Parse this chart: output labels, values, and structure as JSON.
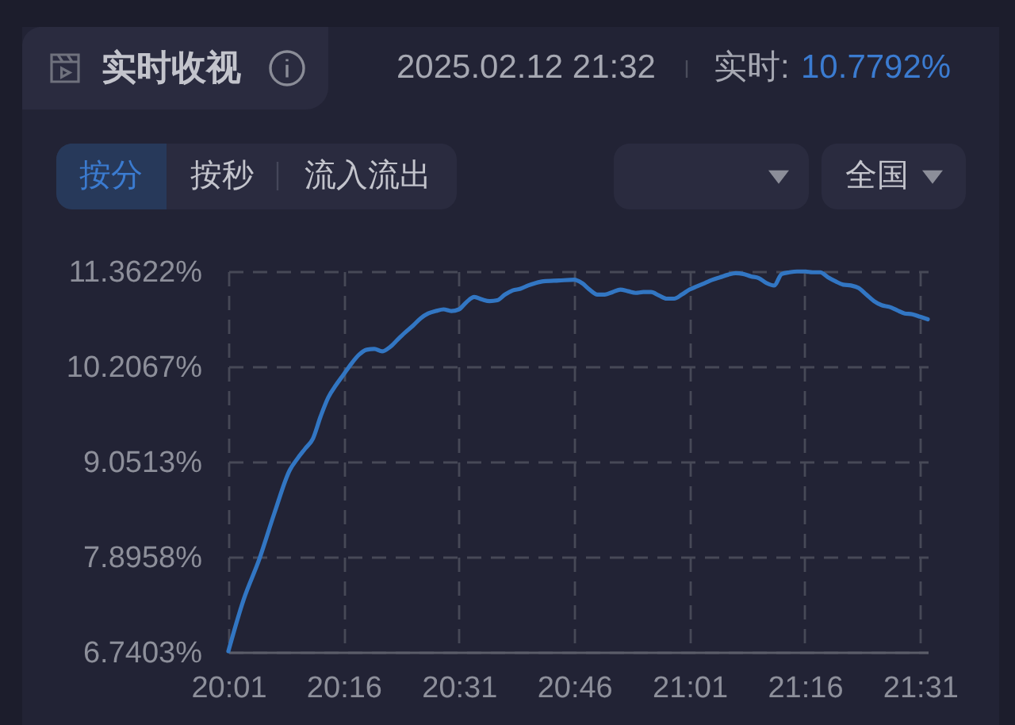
{
  "chart_data": {
    "type": "line",
    "title": "实时收视",
    "subtitle": "2025.02.12 21:32",
    "annotations": [
      "实时:",
      "10.7792%",
      "按分",
      "按秒",
      "流入流出",
      "全国"
    ],
    "x": [
      20.0167,
      20.05,
      20.0833,
      20.1167,
      20.15,
      20.1667,
      20.1833,
      20.2,
      20.2167,
      20.2333,
      20.25,
      20.2667,
      20.2833,
      20.3,
      20.3167,
      20.3333,
      20.35,
      20.3667,
      20.3833,
      20.4,
      20.4167,
      20.4333,
      20.45,
      20.4667,
      20.4833,
      20.5,
      20.5167,
      20.5333,
      20.55,
      20.5667,
      20.5833,
      20.6,
      20.6167,
      20.6333,
      20.65,
      20.6667,
      20.6833,
      20.7,
      20.7333,
      20.7667,
      20.7833,
      20.8,
      20.8167,
      20.8333,
      20.85,
      20.8667,
      20.8833,
      20.9,
      20.9167,
      20.9333,
      20.95,
      20.9667,
      20.9833,
      21.0,
      21.0167,
      21.0333,
      21.05,
      21.0667,
      21.0833,
      21.1,
      21.1167,
      21.1333,
      21.15,
      21.1667,
      21.1833,
      21.2,
      21.2167,
      21.2333,
      21.25,
      21.2667,
      21.2833,
      21.3,
      21.3167,
      21.3333,
      21.35,
      21.3667,
      21.3833,
      21.4,
      21.4167,
      21.4333,
      21.45,
      21.4667,
      21.4833,
      21.5,
      21.5167,
      21.5333
    ],
    "values": [
      6.75,
      7.38,
      7.86,
      8.43,
      8.95,
      9.09,
      9.21,
      9.33,
      9.6,
      9.83,
      9.98,
      10.11,
      10.24,
      10.35,
      10.41,
      10.42,
      10.39,
      10.44,
      10.53,
      10.62,
      10.7,
      10.79,
      10.85,
      10.88,
      10.9,
      10.88,
      10.9,
      10.99,
      11.05,
      11.02,
      11.0,
      11.01,
      11.08,
      11.13,
      11.15,
      11.19,
      11.22,
      11.24,
      11.25,
      11.26,
      11.22,
      11.14,
      11.08,
      11.08,
      11.11,
      11.14,
      11.12,
      11.1,
      11.11,
      11.11,
      11.07,
      11.03,
      11.03,
      11.08,
      11.14,
      11.18,
      11.22,
      11.26,
      11.29,
      11.32,
      11.34,
      11.33,
      11.3,
      11.28,
      11.22,
      11.19,
      11.33,
      11.35,
      11.36,
      11.36,
      11.35,
      11.35,
      11.29,
      11.24,
      11.2,
      11.19,
      11.16,
      11.08,
      11.0,
      10.95,
      10.93,
      10.89,
      10.85,
      10.84,
      10.81,
      10.78
    ],
    "color": "#3276c3",
    "line_style": "solid",
    "grid": true,
    "xlim": [
      20.0167,
      21.5333
    ],
    "xticks": [
      {
        "value": 20.0167,
        "label": "20:01"
      },
      {
        "value": 20.2667,
        "label": "20:16"
      },
      {
        "value": 20.5167,
        "label": "20:31"
      },
      {
        "value": 20.7667,
        "label": "20:46"
      },
      {
        "value": 21.0167,
        "label": "21:01"
      },
      {
        "value": 21.2667,
        "label": "21:16"
      },
      {
        "value": 21.5167,
        "label": "21:31"
      }
    ],
    "ylim": [
      6.7403,
      11.3622
    ],
    "yticks": [
      {
        "value": 6.7403,
        "label": "6.7403%"
      },
      {
        "value": 7.8958,
        "label": "7.8958%"
      },
      {
        "value": 9.0513,
        "label": "9.0513%"
      },
      {
        "value": 10.2067,
        "label": "10.2067%"
      },
      {
        "value": 11.3622,
        "label": "11.3622%"
      }
    ]
  }
}
